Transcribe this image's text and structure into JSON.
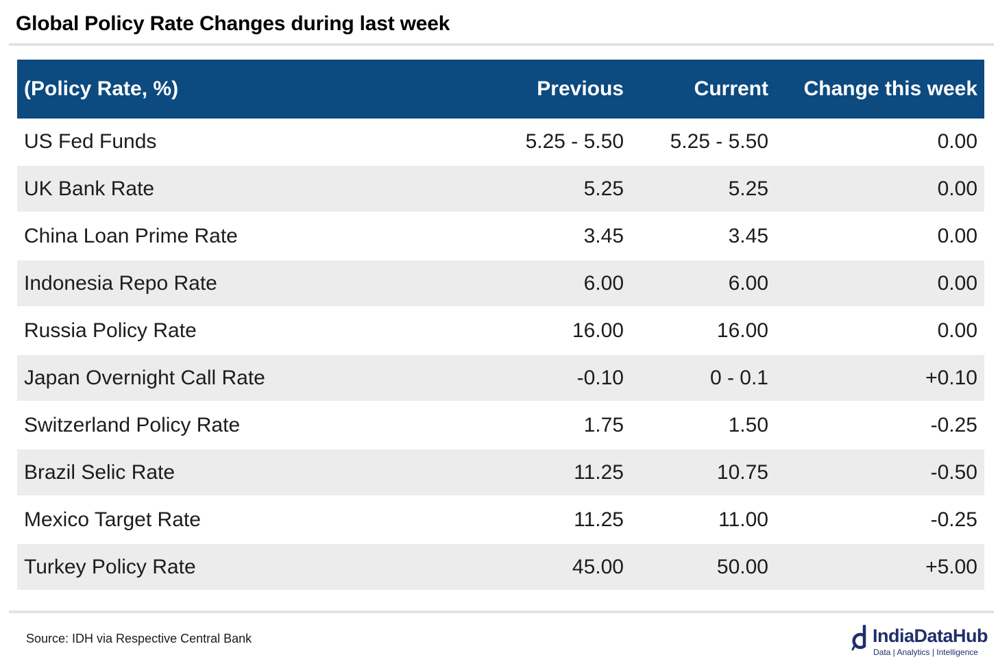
{
  "title": "Global Policy Rate Changes during last week",
  "chart_data": {
    "type": "table",
    "columns": [
      "(Policy Rate, %)",
      "Previous",
      "Current",
      "Change this week"
    ],
    "rows": [
      [
        "US Fed Funds",
        "5.25 - 5.50",
        "5.25 - 5.50",
        "0.00"
      ],
      [
        "UK Bank Rate",
        "5.25",
        "5.25",
        "0.00"
      ],
      [
        "China Loan Prime Rate",
        "3.45",
        "3.45",
        "0.00"
      ],
      [
        "Indonesia Repo Rate",
        "6.00",
        "6.00",
        "0.00"
      ],
      [
        "Russia Policy Rate",
        "16.00",
        "16.00",
        "0.00"
      ],
      [
        "Japan Overnight Call Rate",
        "-0.10",
        "0 - 0.1",
        "+0.10"
      ],
      [
        "Switzerland Policy Rate",
        "1.75",
        "1.50",
        "-0.25"
      ],
      [
        "Brazil Selic Rate",
        "11.25",
        "10.75",
        "-0.50"
      ],
      [
        "Mexico Target Rate",
        "11.25",
        "11.00",
        "-0.25"
      ],
      [
        "Turkey Policy Rate",
        "45.00",
        "50.00",
        "+5.00"
      ]
    ]
  },
  "source": "Source: IDH via Respective Central Bank",
  "logo": {
    "brand": "IndiaDataHub",
    "tagline": "Data | Analytics | Intelligence"
  },
  "colors": {
    "header_bg": "#0c4a80",
    "stripe_bg": "#ececec",
    "brand": "#1f2e6b"
  }
}
